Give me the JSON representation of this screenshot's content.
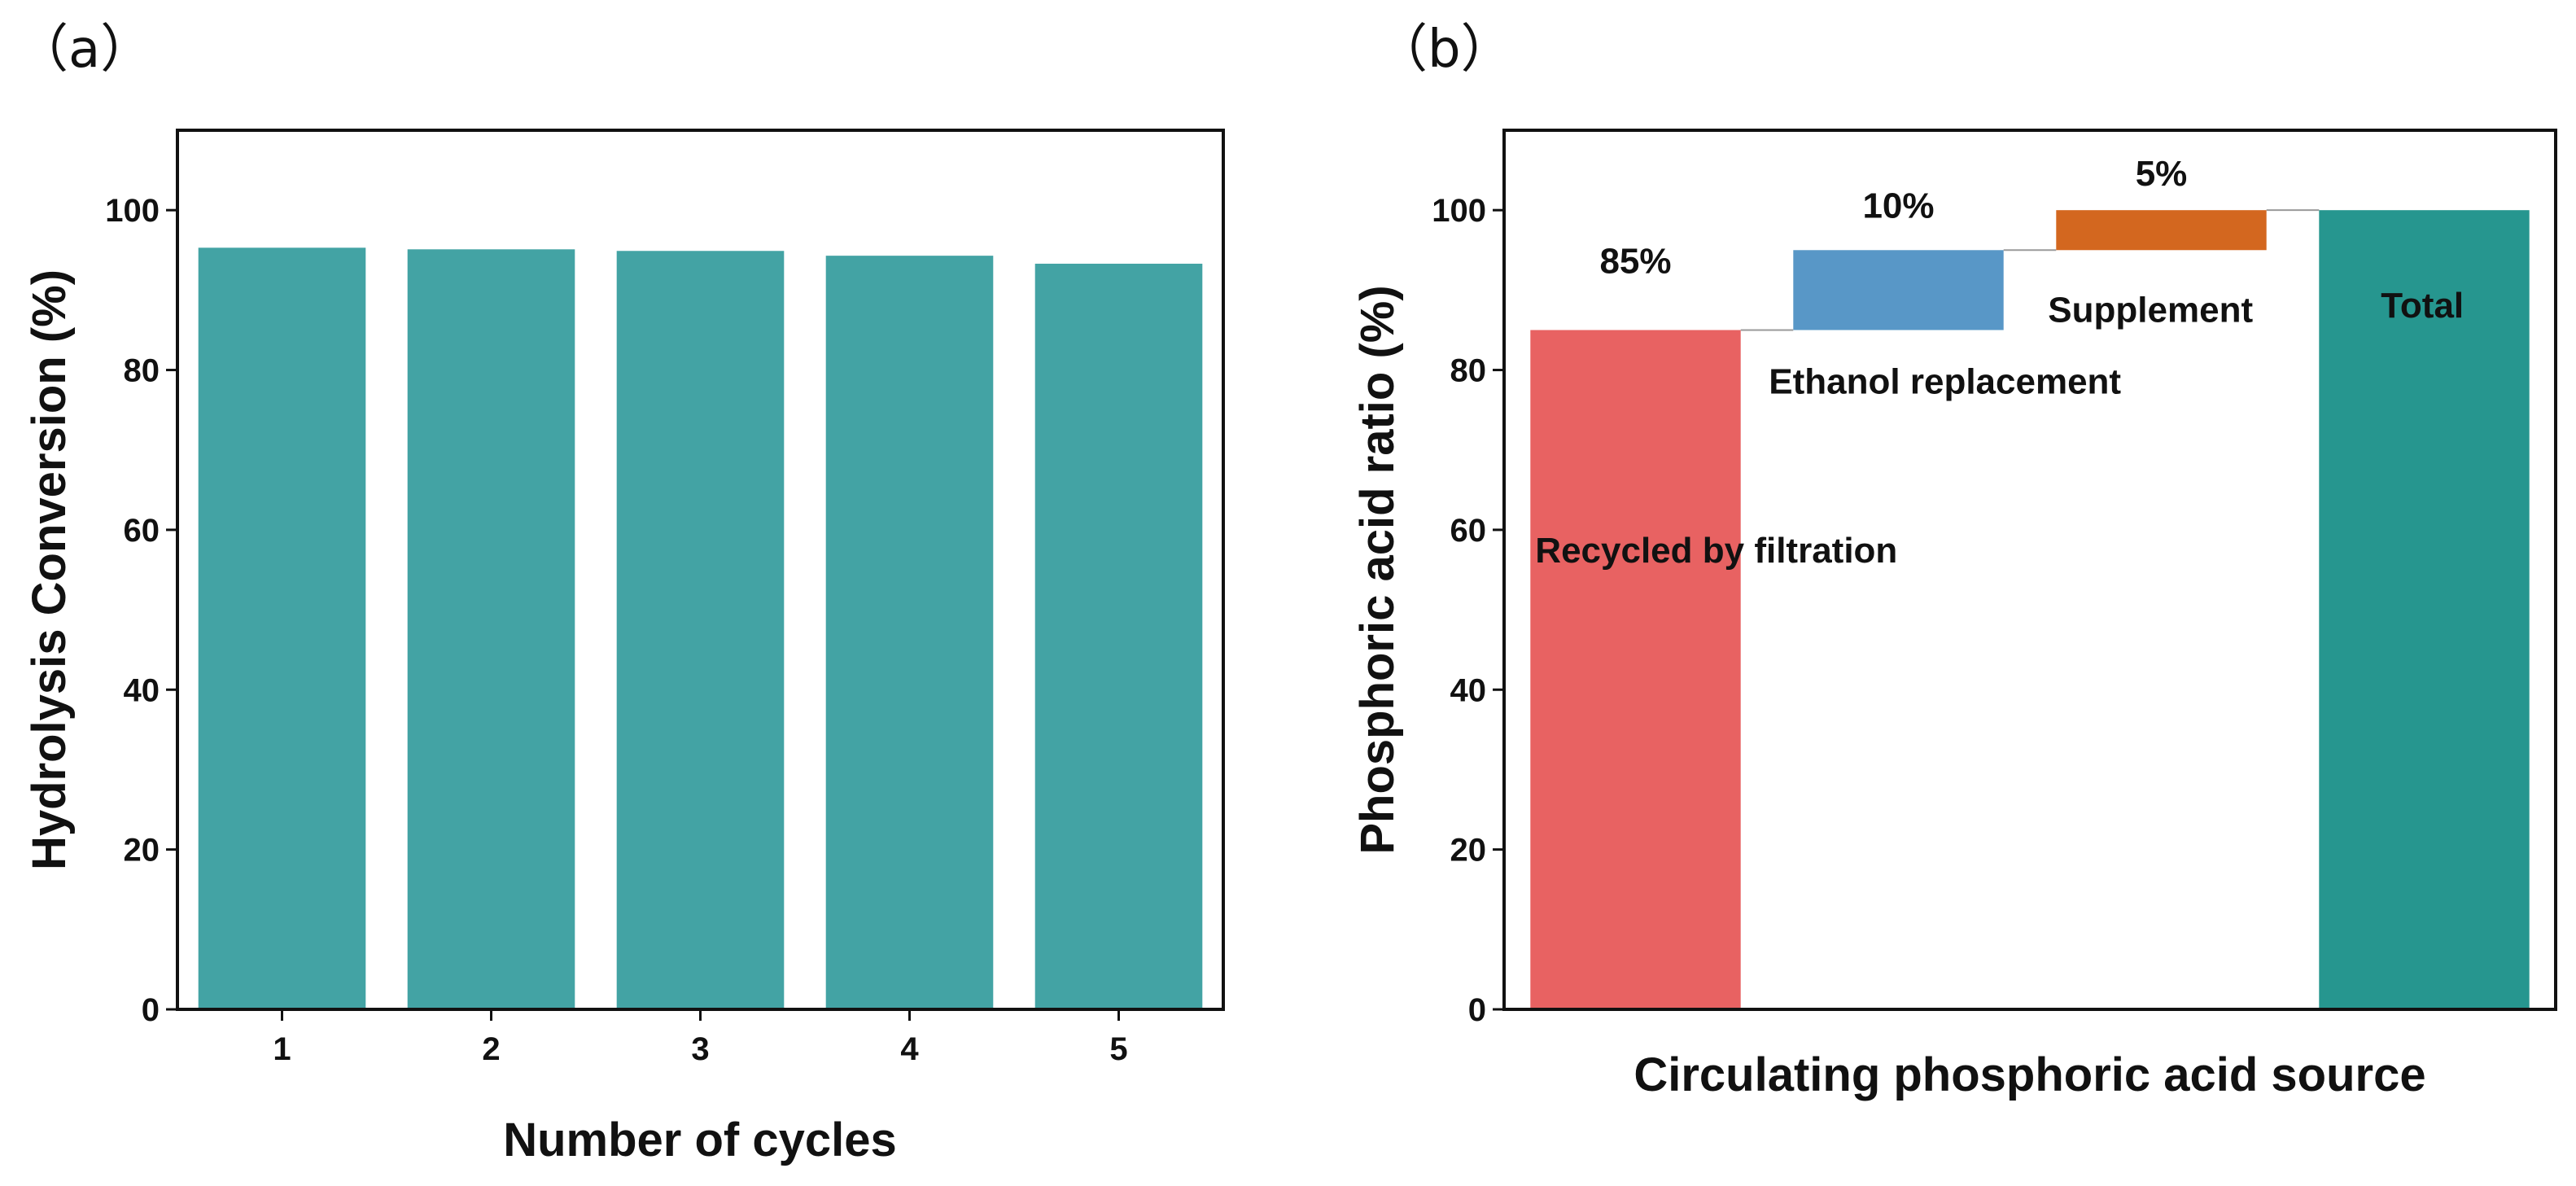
{
  "panels": {
    "a": "（a）",
    "b": "（b）"
  },
  "chart_data": [
    {
      "id": "a",
      "type": "bar",
      "panel_label": "（a）",
      "categories": [
        "1",
        "2",
        "3",
        "4",
        "5"
      ],
      "values": [
        95.3,
        95.1,
        94.9,
        94.3,
        93.3
      ],
      "xlabel": "Number of cycles",
      "ylabel": "Hydrolysis Conversion (%)",
      "ylim": [
        0,
        110
      ],
      "yticks": [
        0,
        20,
        40,
        60,
        80,
        100
      ],
      "color": "#43a3a4"
    },
    {
      "id": "b",
      "type": "bar",
      "subtype": "waterfall",
      "panel_label": "（b）",
      "xlabel": "Circulating phosphoric acid source",
      "ylabel": "Phosphoric acid ratio (%)",
      "ylim": [
        0,
        110
      ],
      "yticks": [
        0,
        20,
        40,
        60,
        80,
        100
      ],
      "bars": [
        {
          "label": "Recycled by filtration",
          "start": 0,
          "end": 85,
          "value_label": "85%",
          "color": "#e86262"
        },
        {
          "label": "Ethanol replacement",
          "start": 85,
          "end": 95,
          "value_label": "10%",
          "color": "#5897c7"
        },
        {
          "label": "Supplement",
          "start": 95,
          "end": 100,
          "value_label": "5%",
          "color": "#d3671f"
        },
        {
          "label": "Total",
          "start": 0,
          "end": 100,
          "value_label": "",
          "color": "#26968f"
        }
      ]
    }
  ]
}
